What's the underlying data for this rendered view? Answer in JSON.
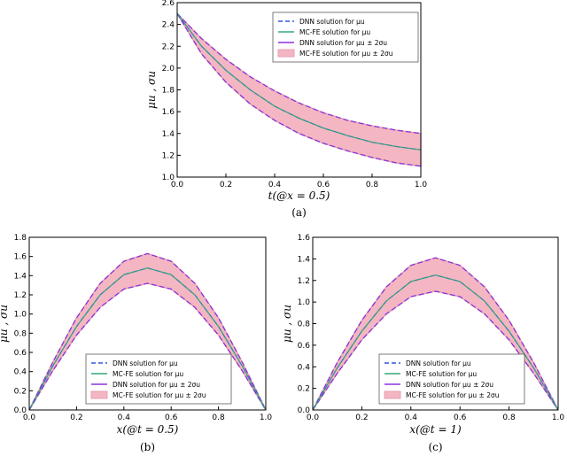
{
  "legend_entries": [
    "DNN solution for μu",
    "MC-FE solution for μu",
    "DNN solution for μu ± 2σu",
    "MC-FE solution for μu ± 2σu"
  ],
  "colors": {
    "dnn_mean": "#3355dd",
    "mcfe_mean": "#33aa77",
    "dnn_band": "#8833dd",
    "mcfe_band": "#f4b6c2"
  },
  "chart_data": [
    {
      "type": "line",
      "caption": "(a)",
      "xlabel": "t(@x = 0.5)",
      "ylabel": "μu , σu",
      "xlim": [
        0,
        1
      ],
      "ylim": [
        1.0,
        2.6
      ],
      "xticks": [
        "0.0",
        "0.2",
        "0.4",
        "0.6",
        "0.8",
        "1.0"
      ],
      "yticks": [
        "1.0",
        "1.2",
        "1.4",
        "1.6",
        "1.8",
        "2.0",
        "2.2",
        "2.4",
        "2.6"
      ],
      "legend": "top-right",
      "x": [
        0,
        0.1,
        0.2,
        0.3,
        0.4,
        0.5,
        0.6,
        0.7,
        0.8,
        0.9,
        1.0
      ],
      "mean": [
        2.5,
        2.2,
        1.98,
        1.8,
        1.65,
        1.54,
        1.45,
        1.38,
        1.32,
        1.28,
        1.25
      ],
      "upper": [
        2.5,
        2.27,
        2.08,
        1.92,
        1.79,
        1.68,
        1.59,
        1.52,
        1.47,
        1.43,
        1.4
      ],
      "lower": [
        2.5,
        2.13,
        1.87,
        1.67,
        1.52,
        1.4,
        1.31,
        1.24,
        1.18,
        1.13,
        1.1
      ]
    },
    {
      "type": "line",
      "caption": "(b)",
      "xlabel": "x(@t = 0.5)",
      "ylabel": "μu , σu",
      "xlim": [
        0,
        1
      ],
      "ylim": [
        0,
        1.8
      ],
      "xticks": [
        "0.0",
        "0.2",
        "0.4",
        "0.6",
        "0.8",
        "1.0"
      ],
      "yticks": [
        "0.0",
        "0.2",
        "0.4",
        "0.6",
        "0.8",
        "1.0",
        "1.2",
        "1.4",
        "1.6",
        "1.8"
      ],
      "legend": "bottom-left",
      "x": [
        0,
        0.1,
        0.2,
        0.3,
        0.4,
        0.5,
        0.6,
        0.7,
        0.8,
        0.9,
        1.0
      ],
      "mean": [
        0,
        0.46,
        0.87,
        1.2,
        1.41,
        1.48,
        1.41,
        1.2,
        0.87,
        0.46,
        0
      ],
      "upper": [
        0,
        0.5,
        0.96,
        1.32,
        1.55,
        1.63,
        1.55,
        1.32,
        0.96,
        0.5,
        0
      ],
      "lower": [
        0,
        0.41,
        0.78,
        1.07,
        1.26,
        1.32,
        1.26,
        1.07,
        0.78,
        0.41,
        0
      ]
    },
    {
      "type": "line",
      "caption": "(c)",
      "xlabel": "x(@t = 1)",
      "ylabel": "μu , σu",
      "xlim": [
        0,
        1
      ],
      "ylim": [
        0,
        1.6
      ],
      "xticks": [
        "0.0",
        "0.2",
        "0.4",
        "0.6",
        "0.8",
        "1.0"
      ],
      "yticks": [
        "0.0",
        "0.2",
        "0.4",
        "0.6",
        "0.8",
        "1.0",
        "1.2",
        "1.4",
        "1.6"
      ],
      "legend": "bottom-left",
      "x": [
        0,
        0.1,
        0.2,
        0.3,
        0.4,
        0.5,
        0.6,
        0.7,
        0.8,
        0.9,
        1.0
      ],
      "mean": [
        0,
        0.39,
        0.73,
        1.01,
        1.19,
        1.25,
        1.19,
        1.01,
        0.73,
        0.39,
        0
      ],
      "upper": [
        0,
        0.44,
        0.83,
        1.14,
        1.34,
        1.41,
        1.34,
        1.14,
        0.83,
        0.44,
        0
      ],
      "lower": [
        0,
        0.34,
        0.65,
        0.89,
        1.05,
        1.1,
        1.05,
        0.89,
        0.65,
        0.34,
        0
      ]
    }
  ]
}
